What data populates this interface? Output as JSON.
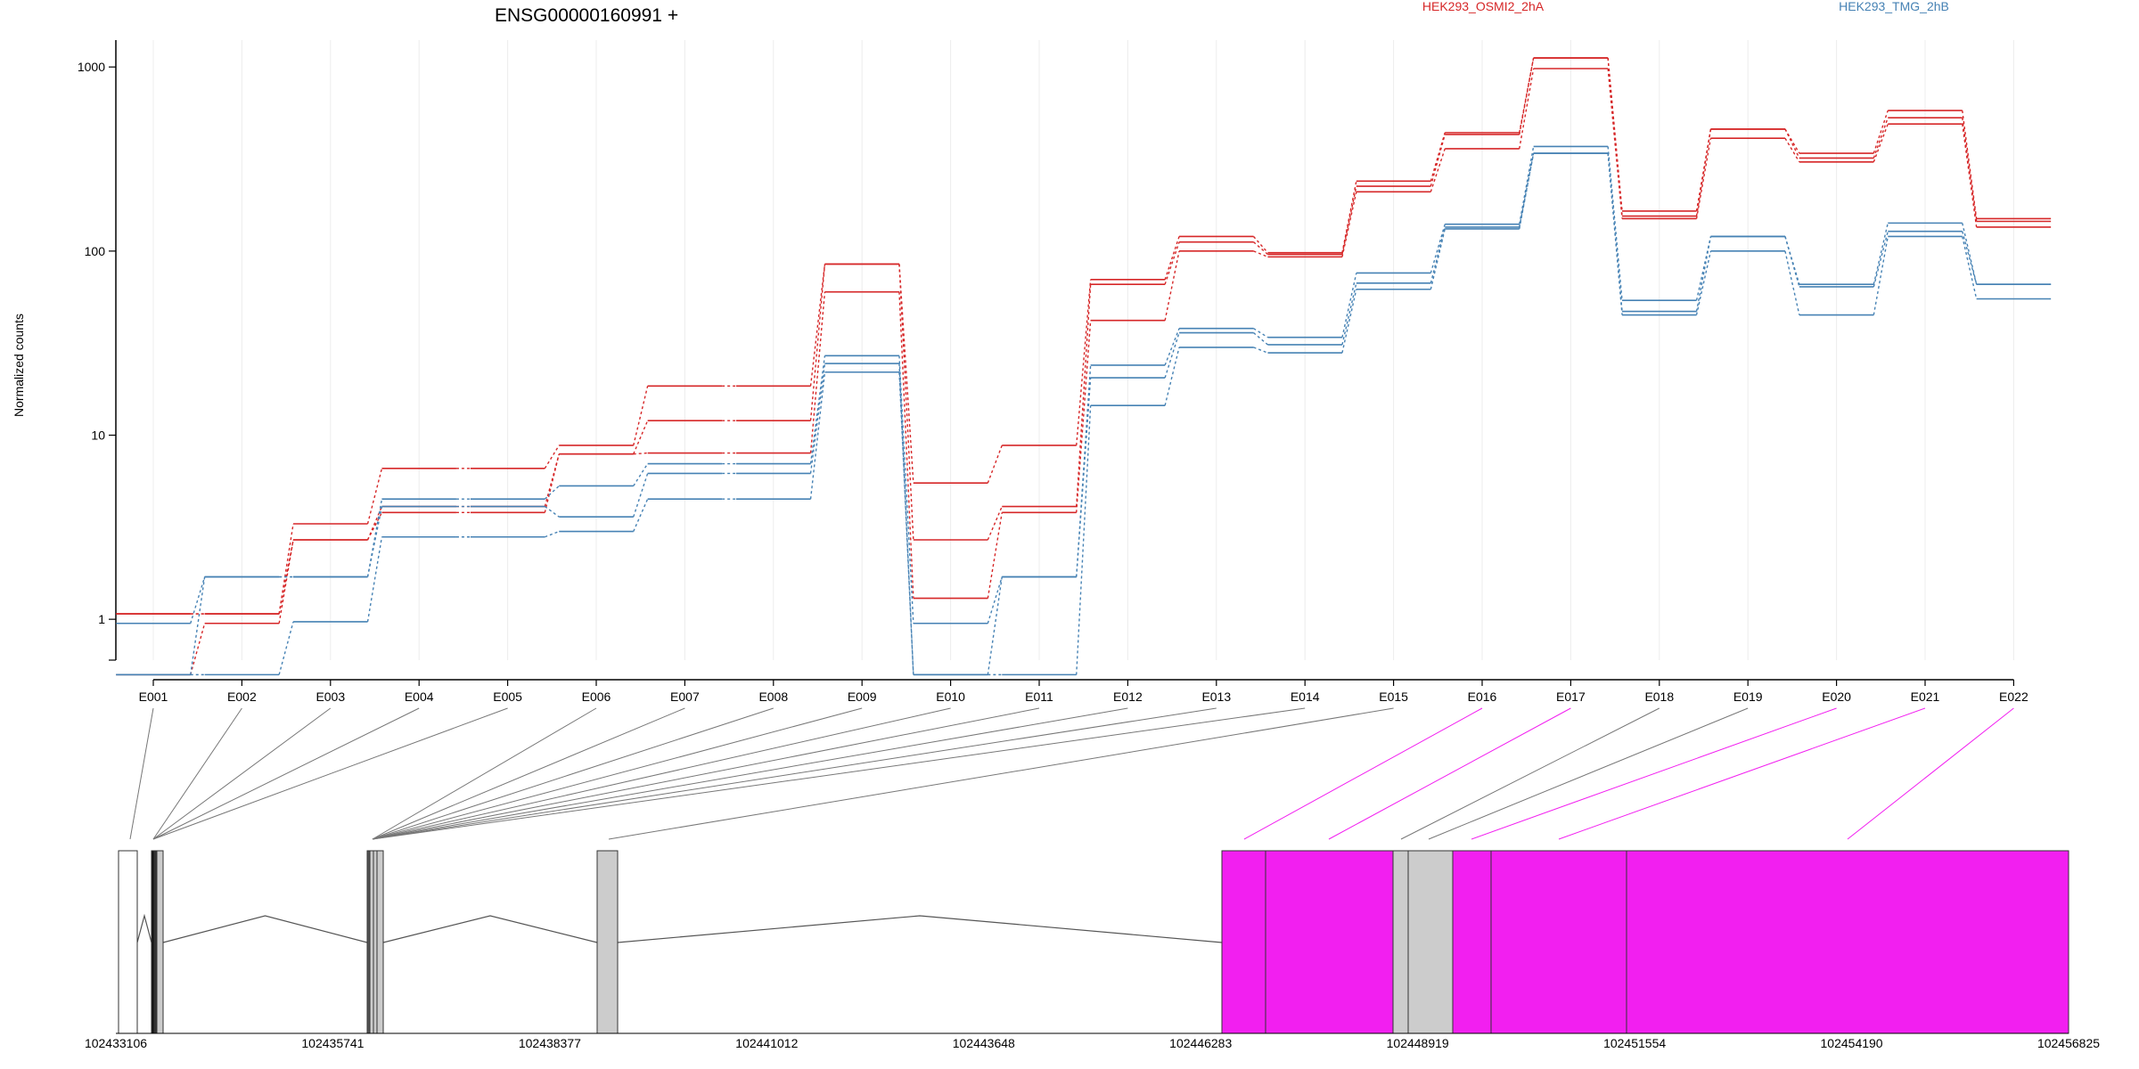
{
  "chart_data": {
    "type": "line",
    "title": "ENSG00000160991 +",
    "ylabel": "Normalized counts",
    "xlabel": "",
    "yscale": "log",
    "ylim": [
      0.6,
      1400
    ],
    "y_ticks": [
      {
        "value": 1,
        "label": "1"
      },
      {
        "value": 10,
        "label": "10"
      },
      {
        "value": 100,
        "label": "100"
      },
      {
        "value": 1000,
        "label": "1000"
      }
    ],
    "grid": true,
    "legend_position": "top",
    "categories": [
      "E001",
      "E002",
      "E003",
      "E004",
      "E005",
      "E006",
      "E007",
      "E008",
      "E009",
      "E010",
      "E011",
      "E012",
      "E013",
      "E014",
      "E015",
      "E016",
      "E017",
      "E018",
      "E019",
      "E020",
      "E021",
      "E022"
    ],
    "series": [
      {
        "name": "HEK293_OSMI2_2hA",
        "color": "#d62728",
        "values": [
          1.07,
          1.07,
          3.3,
          6.6,
          6.6,
          8.8,
          18.5,
          18.5,
          85,
          5.5,
          8.8,
          70,
          120,
          98,
          240,
          440,
          1120,
          165,
          460,
          340,
          580,
          150
        ]
      },
      {
        "name": "HEK293_OSMI2_2hA",
        "color": "#d62728",
        "values": [
          1.07,
          1.07,
          2.7,
          4.1,
          4.1,
          7.9,
          12.0,
          12.0,
          85,
          2.7,
          4.1,
          66,
          112,
          96,
          225,
          430,
          1120,
          155,
          460,
          320,
          530,
          145
        ]
      },
      {
        "name": "HEK293_OSMI2_2hA",
        "color": "#d62728",
        "values": [
          0.5,
          0.95,
          2.7,
          3.8,
          3.8,
          7.9,
          8.0,
          8.0,
          60,
          1.3,
          3.8,
          42,
          100,
          93,
          210,
          360,
          980,
          150,
          410,
          305,
          490,
          135
        ]
      },
      {
        "name": "HEK293_TMG_2hB",
        "color": "#4682b4",
        "values": [
          0.95,
          1.7,
          1.7,
          4.5,
          4.5,
          5.3,
          7.0,
          7.0,
          27,
          0.95,
          1.7,
          24,
          38,
          34,
          76,
          140,
          370,
          54,
          120,
          66,
          142,
          66
        ]
      },
      {
        "name": "HEK293_TMG_2hB",
        "color": "#4682b4",
        "values": [
          0.5,
          1.7,
          1.7,
          4.1,
          4.1,
          3.6,
          6.2,
          6.2,
          24.5,
          0.5,
          1.7,
          20.5,
          36,
          31,
          67,
          135,
          340,
          47,
          120,
          64,
          128,
          66
        ]
      },
      {
        "name": "HEK293_TMG_2hB",
        "color": "#4682b4",
        "values": [
          0.5,
          0.5,
          0.97,
          2.8,
          2.8,
          3.0,
          4.5,
          4.5,
          22,
          0.5,
          0.5,
          14.5,
          30,
          28,
          62,
          132,
          340,
          45,
          100,
          45,
          120,
          55
        ]
      }
    ],
    "legend": [
      {
        "label": "HEK293_OSMI2_2hA",
        "color": "#d62728"
      },
      {
        "label": "HEK293_TMG_2hB",
        "color": "#4682b4"
      }
    ],
    "genomic_axis": {
      "range": [
        102433106,
        102456825
      ],
      "ticks": [
        "102433106",
        "102435741",
        "102438377",
        "102441012",
        "102443648",
        "102446283",
        "102448919",
        "102451554",
        "102454190",
        "102456825"
      ]
    },
    "exon_color_highlight": "#f21ff0",
    "exon_color_default": "#cccccc"
  }
}
